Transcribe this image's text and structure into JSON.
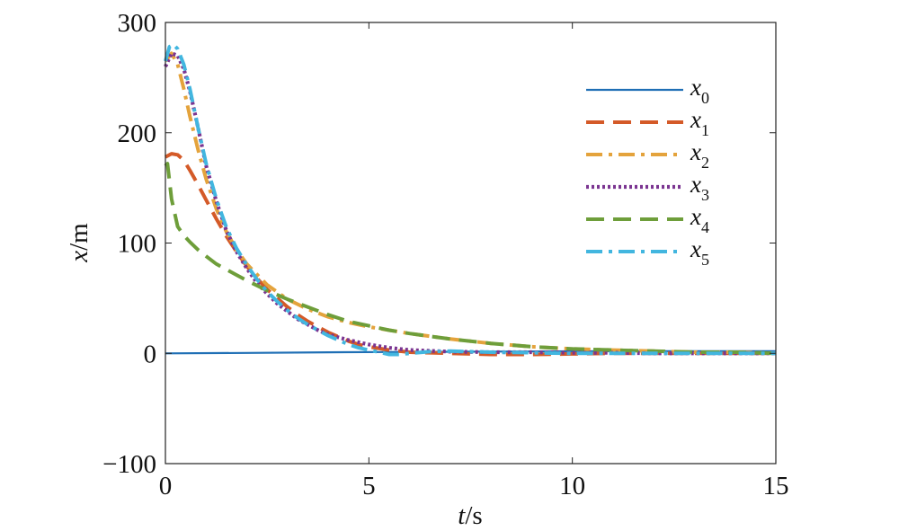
{
  "chart_data": {
    "type": "line",
    "title": "",
    "xlabel_var": "t",
    "xlabel_unit": "/s",
    "ylabel_var": "x",
    "ylabel_unit": "/m",
    "xlim": [
      0,
      15
    ],
    "ylim": [
      -100,
      300
    ],
    "xticks": [
      0,
      5,
      10,
      15
    ],
    "yticks": [
      -100,
      0,
      100,
      200,
      300
    ],
    "ytick_labels": [
      "−100",
      "0",
      "100",
      "200",
      "300"
    ],
    "grid": false,
    "legend_position": "top-right",
    "series": [
      {
        "name": "x",
        "subscript": "0",
        "color": "#1f6fb5",
        "dash": "solid",
        "x": [
          0,
          2,
          4,
          6,
          8,
          10,
          12,
          14,
          15
        ],
        "y": [
          0,
          0.4,
          0.9,
          1.3,
          1.6,
          1.8,
          1.9,
          2.0,
          2.0
        ]
      },
      {
        "name": "x",
        "subscript": "1",
        "color": "#d45a28",
        "dash": "dashed",
        "x": [
          0,
          0.15,
          0.3,
          0.45,
          0.6,
          0.8,
          1.0,
          1.25,
          1.5,
          1.75,
          2.0,
          2.25,
          2.5,
          2.75,
          3.0,
          3.25,
          3.5,
          3.75,
          4.0,
          4.25,
          4.5,
          4.75,
          5.0,
          5.5,
          6.0,
          6.5,
          7.0,
          7.5,
          8.0,
          8.5,
          9.0,
          10.0,
          11.0,
          12.0,
          13.0,
          14.0,
          15.0
        ],
        "y": [
          178,
          181,
          180,
          175,
          166,
          153,
          139,
          122,
          106,
          92,
          79,
          68,
          58,
          50,
          42,
          35,
          29,
          24,
          19,
          15,
          11,
          8,
          6,
          3,
          1,
          0.5,
          0,
          -0.5,
          -1,
          -1,
          -1,
          -0.5,
          0,
          0,
          0,
          0,
          0
        ]
      },
      {
        "name": "x",
        "subscript": "2",
        "color": "#e4a33c",
        "dash": "dashdot",
        "x": [
          0,
          0.15,
          0.3,
          0.45,
          0.6,
          0.8,
          1.0,
          1.25,
          1.5,
          1.75,
          2.0,
          2.5,
          3.0,
          3.5,
          4.0,
          4.5,
          5.0,
          5.5,
          6.0,
          7.0,
          8.0,
          9.0,
          10.0,
          11.0,
          12.0,
          13.0,
          14.0,
          15.0
        ],
        "y": [
          265,
          272,
          262,
          240,
          215,
          185,
          158,
          131,
          110,
          94,
          81,
          62,
          49,
          40,
          33,
          28,
          24,
          21,
          18,
          13,
          9,
          6,
          4,
          3,
          2,
          1,
          1,
          0
        ]
      },
      {
        "name": "x",
        "subscript": "3",
        "color": "#7b3591",
        "dash": "dotted",
        "x": [
          0,
          0.15,
          0.3,
          0.45,
          0.6,
          0.8,
          1.0,
          1.25,
          1.5,
          1.75,
          2.0,
          2.25,
          2.5,
          2.75,
          3.0,
          3.25,
          3.5,
          3.75,
          4.0,
          4.5,
          5.0,
          5.5,
          6.0,
          7.0,
          8.0,
          9.0,
          10.0,
          11.0,
          12.0,
          13.0,
          14.0,
          15.0
        ],
        "y": [
          260,
          272,
          270,
          258,
          238,
          205,
          170,
          138,
          111,
          92,
          77,
          64,
          54,
          45,
          38,
          31,
          26,
          21,
          17,
          12,
          8,
          5,
          3,
          1.5,
          1,
          1,
          0.5,
          0.5,
          0,
          0,
          0,
          0
        ]
      },
      {
        "name": "x",
        "subscript": "4",
        "color": "#6e9e3a",
        "dash": "dashed",
        "x": [
          0,
          0.05,
          0.15,
          0.3,
          0.45,
          0.6,
          0.8,
          1.0,
          1.25,
          1.5,
          1.75,
          2.0,
          2.5,
          3.0,
          3.5,
          4.0,
          4.5,
          5.0,
          5.5,
          6.0,
          7.0,
          8.0,
          9.0,
          10.0,
          11.0,
          12.0,
          13.0,
          14.0,
          15.0
        ],
        "y": [
          170,
          172,
          140,
          115,
          107,
          101,
          94,
          88,
          81,
          76,
          71,
          66,
          57,
          49,
          42,
          35,
          29,
          25,
          21,
          18,
          13,
          9,
          6,
          4,
          3,
          2,
          1,
          1,
          0
        ]
      },
      {
        "name": "x",
        "subscript": "5",
        "color": "#42b6df",
        "dash": "dashdot",
        "x": [
          0,
          0.1,
          0.2,
          0.3,
          0.45,
          0.6,
          0.8,
          1.0,
          1.25,
          1.5,
          1.75,
          2.0,
          2.25,
          2.5,
          2.75,
          3.0,
          3.25,
          3.5,
          3.75,
          4.0,
          4.25,
          4.5,
          4.75,
          5.0,
          5.25,
          5.5,
          5.75,
          6.0,
          6.5,
          7.0,
          7.5,
          8.0,
          9.0,
          10.0,
          11.0,
          12.0,
          13.0,
          14.0,
          15.0
        ],
        "y": [
          265,
          278,
          280,
          276,
          262,
          240,
          205,
          172,
          140,
          114,
          95,
          80,
          67,
          56,
          47,
          39,
          32,
          26,
          21,
          16,
          12,
          8,
          5,
          3,
          1,
          -1,
          -1,
          0,
          1.5,
          2,
          1.5,
          1,
          0.5,
          0,
          0,
          0,
          0,
          0,
          0
        ]
      }
    ]
  }
}
